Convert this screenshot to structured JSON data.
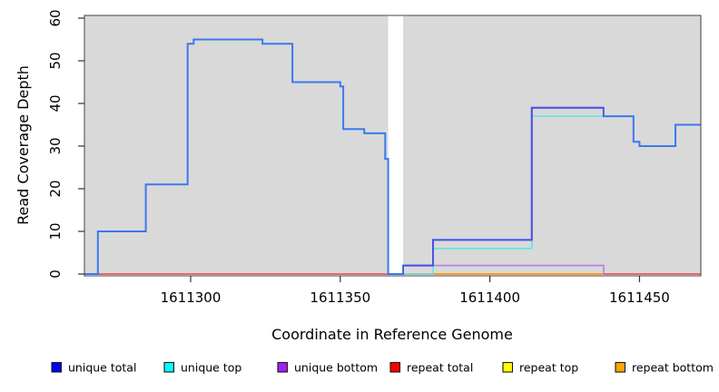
{
  "chart_data": {
    "type": "line",
    "subtype": "step-coverage",
    "title": "",
    "xlabel": "Coordinate in Reference Genome",
    "ylabel": "Read Coverage Depth",
    "x_range": [
      1611264.5,
      1611470.5
    ],
    "y_range": [
      0,
      60
    ],
    "x_ticks": [
      1611300,
      1611350,
      1611400,
      1611450
    ],
    "y_ticks": [
      0,
      10,
      20,
      30,
      40,
      50,
      60
    ],
    "grid": false,
    "panel_bg": "#d9d9d9",
    "gap_region": [
      1611366,
      1611371
    ],
    "series": [
      {
        "name": "repeat top",
        "line_color": "#f5e733",
        "width": 1.4,
        "points": [
          [
            1611264.5,
            0
          ]
        ],
        "end_x": 1611470.5
      },
      {
        "name": "repeat total",
        "line_color": "#ee3f5e",
        "width": 1.4,
        "points": [
          [
            1611264.5,
            0
          ]
        ],
        "end_x": 1611470.5
      },
      {
        "name": "repeat bottom",
        "line_color": "#ff9d12",
        "width": 1.8,
        "points": [
          [
            1611381,
            0
          ]
        ],
        "end_x": 1611438
      },
      {
        "name": "unique top",
        "line_color": "#5fe6e6",
        "width": 1.6,
        "points": [
          [
            1611371,
            0
          ],
          [
            1611381,
            6
          ],
          [
            1611414,
            37
          ],
          [
            1611448,
            31
          ],
          [
            1611450,
            30
          ],
          [
            1611462,
            35
          ]
        ],
        "end_x": 1611470.5
      },
      {
        "name": "unique bottom",
        "line_color": "#b77ceb",
        "width": 1.6,
        "points": [
          [
            1611371,
            2
          ]
        ],
        "end_x": 1611438,
        "drop_to_zero": true
      },
      {
        "name": "unique total",
        "line_color": "#3b79f1",
        "width": 2,
        "points": [
          [
            1611264.5,
            0
          ],
          [
            1611269,
            10
          ],
          [
            1611285,
            21
          ],
          [
            1611299,
            54
          ],
          [
            1611301,
            55
          ],
          [
            1611324,
            54
          ],
          [
            1611334,
            45
          ],
          [
            1611350,
            44
          ],
          [
            1611351,
            34
          ],
          [
            1611358,
            33
          ],
          [
            1611365,
            27
          ],
          [
            1611366,
            0
          ],
          [
            1611371,
            2
          ],
          [
            1611381,
            8
          ],
          [
            1611414,
            39
          ],
          [
            1611438,
            37
          ],
          [
            1611448,
            31
          ],
          [
            1611450,
            30
          ],
          [
            1611462,
            35
          ]
        ],
        "end_x": 1611470.5
      }
    ],
    "overlap_tint": {
      "applies_to": "unique total",
      "over_extent_of": "unique bottom",
      "color": "#5a2bd8",
      "opacity": 0.5
    },
    "legend_position": "bottom",
    "legend": [
      {
        "label": "unique total",
        "swatch": "#0000ff"
      },
      {
        "label": "unique top",
        "swatch": "#00ffff"
      },
      {
        "label": "unique bottom",
        "swatch": "#a020f0"
      },
      {
        "label": "repeat total",
        "swatch": "#ff0000"
      },
      {
        "label": "repeat top",
        "swatch": "#ffff00"
      },
      {
        "label": "repeat bottom",
        "swatch": "#ffa500"
      }
    ],
    "x_tick_labels": [
      "1611300",
      "1611350",
      "1611400",
      "1611450"
    ],
    "y_tick_labels": [
      "0",
      "10",
      "20",
      "30",
      "40",
      "50",
      "60"
    ]
  }
}
